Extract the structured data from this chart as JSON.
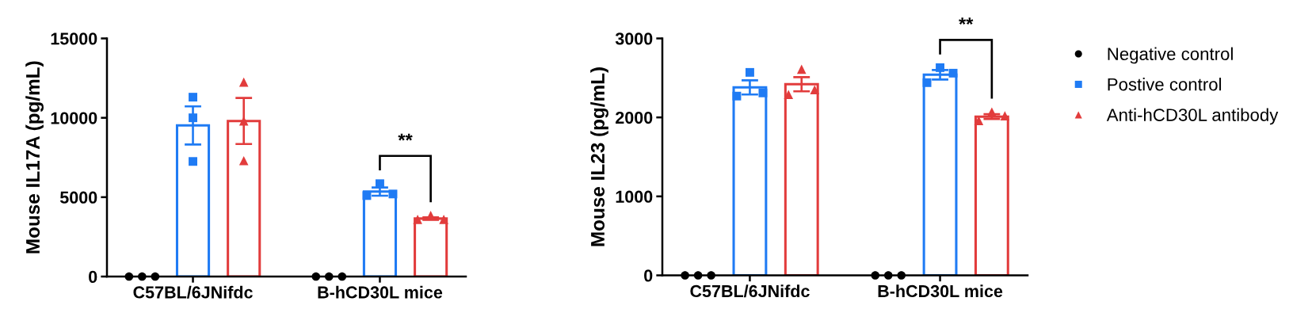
{
  "chart_data": [
    {
      "type": "bar",
      "ylabel": "Mouse IL17A (pg/mL)",
      "categories": [
        "C57BL/6JNifdc",
        "B-hCD30L mice"
      ],
      "ylim": [
        0,
        15000
      ],
      "yticks": [
        0,
        5000,
        10000,
        15000
      ],
      "series": [
        {
          "type": "scatter",
          "marker": "circle",
          "color": "#000000",
          "x": [
            "C57BL/6JNifdc",
            "C57BL/6JNifdc",
            "C57BL/6JNifdc",
            "B-hCD30L mice",
            "B-hCD30L mice",
            "B-hCD30L mice"
          ],
          "values": [
            0,
            0,
            0,
            0,
            0,
            0
          ]
        },
        {
          "type": "bar",
          "color": "#1f7bf4",
          "values": [
            9520,
            5350
          ],
          "errors": [
            1200,
            260
          ]
        },
        {
          "type": "scatter",
          "marker": "square",
          "color": "#1f7bf4",
          "x": [
            "C57BL/6JNifdc",
            "C57BL/6JNifdc",
            "C57BL/6JNifdc",
            "B-hCD30L mice",
            "B-hCD30L mice",
            "B-hCD30L mice"
          ],
          "values": [
            11300,
            10000,
            7250,
            5850,
            5100,
            5200
          ]
        },
        {
          "type": "bar",
          "color": "#e23c3c",
          "values": [
            9800,
            3650
          ],
          "errors": [
            1450,
            80
          ]
        },
        {
          "type": "scatter",
          "marker": "triangle",
          "color": "#e23c3c",
          "x": [
            "C57BL/6JNifdc",
            "C57BL/6JNifdc",
            "C57BL/6JNifdc",
            "B-hCD30L mice",
            "B-hCD30L mice",
            "B-hCD30L mice"
          ],
          "values": [
            12250,
            9800,
            7300,
            3850,
            3600,
            3600
          ]
        }
      ],
      "annotations": [
        "**"
      ]
    },
    {
      "type": "bar",
      "ylabel": "Mouse IL23 (pg/mL)",
      "categories": [
        "C57BL/6JNifdc",
        "B-hCD30L mice"
      ],
      "ylim": [
        0,
        3000
      ],
      "yticks": [
        0,
        1000,
        2000,
        3000
      ],
      "legend": "right",
      "series": [
        {
          "type": "scatter",
          "name": "Negative control",
          "marker": "circle",
          "color": "#000000",
          "x": [
            "C57BL/6JNifdc",
            "C57BL/6JNifdc",
            "C57BL/6JNifdc",
            "B-hCD30L mice",
            "B-hCD30L mice",
            "B-hCD30L mice"
          ],
          "values": [
            0,
            0,
            0,
            0,
            0,
            0
          ]
        },
        {
          "type": "bar",
          "color": "#1f7bf4",
          "values": [
            2380,
            2540
          ],
          "errors": [
            90,
            60
          ]
        },
        {
          "type": "scatter",
          "name": "Postive control",
          "marker": "square",
          "color": "#1f7bf4",
          "x": [
            "C57BL/6JNifdc",
            "C57BL/6JNifdc",
            "C57BL/6JNifdc",
            "B-hCD30L mice",
            "B-hCD30L mice",
            "B-hCD30L mice"
          ],
          "values": [
            2570,
            2270,
            2310,
            2440,
            2560,
            2630
          ]
        },
        {
          "type": "bar",
          "color": "#e23c3c",
          "values": [
            2420,
            2010
          ],
          "errors": [
            90,
            30
          ]
        },
        {
          "type": "scatter",
          "name": "Anti-hCD30L antibody",
          "marker": "triangle",
          "color": "#e23c3c",
          "x": [
            "C57BL/6JNifdc",
            "C57BL/6JNifdc",
            "C57BL/6JNifdc",
            "B-hCD30L mice",
            "B-hCD30L mice",
            "B-hCD30L mice"
          ],
          "values": [
            2610,
            2290,
            2350,
            2070,
            1960,
            2020
          ]
        }
      ],
      "annotations": [
        "**"
      ]
    }
  ]
}
